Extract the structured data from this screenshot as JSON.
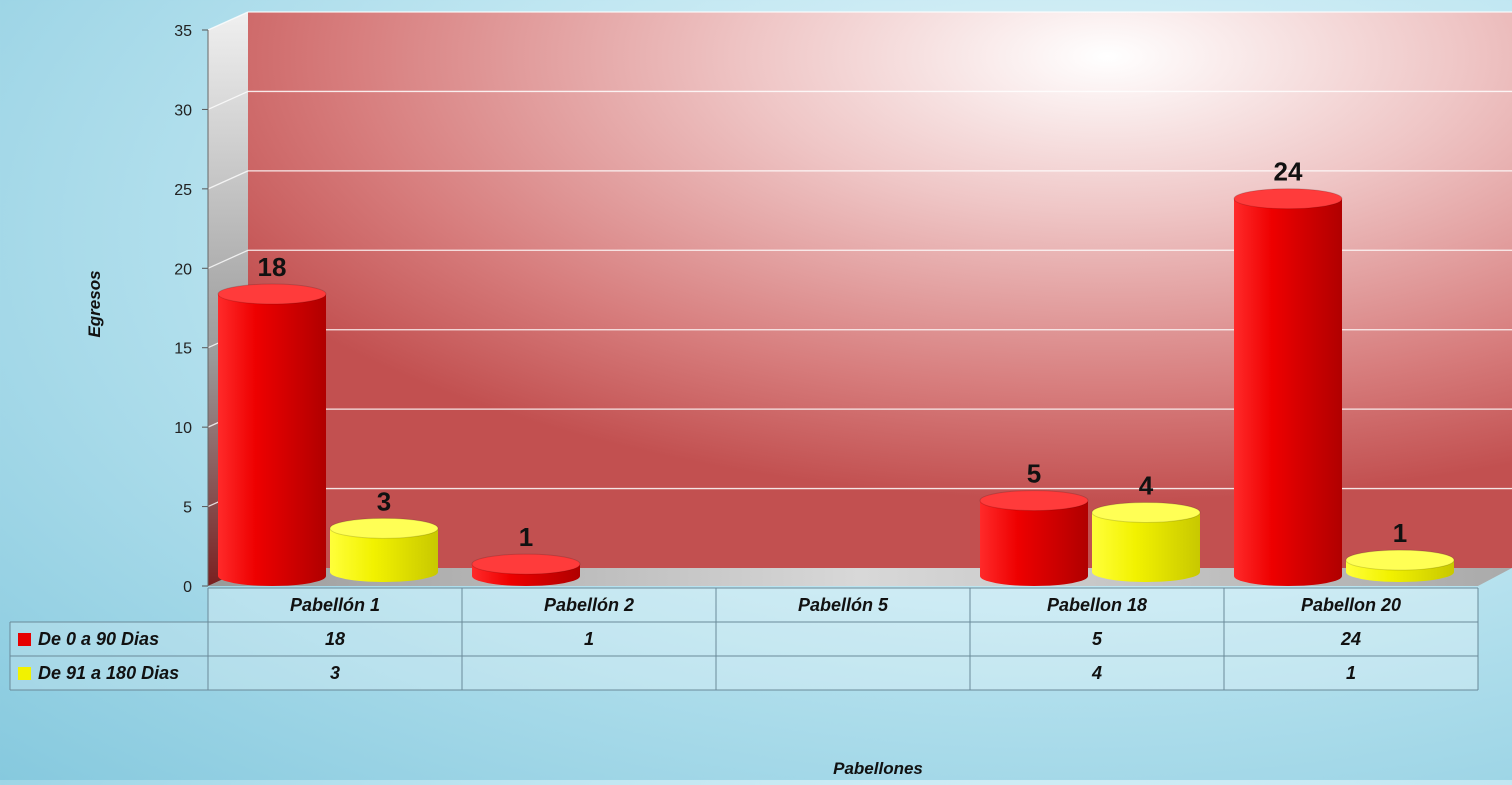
{
  "chart_data": {
    "type": "bar",
    "categories": [
      "Pabellón 1",
      "Pabellón 2",
      "Pabellón 5",
      "Pabellon 18",
      "Pabellon 20"
    ],
    "series": [
      {
        "name": "De 0 a 90 Dias",
        "color": "#e60000",
        "values": [
          18,
          1,
          null,
          5,
          24
        ]
      },
      {
        "name": "De 91 a 180 Dias",
        "color": "#f2f200",
        "values": [
          3,
          null,
          null,
          4,
          1
        ]
      }
    ],
    "xlabel": "Pabellones",
    "ylabel": "Egresos",
    "ylim": [
      0,
      35
    ],
    "yticks": [
      0,
      5,
      10,
      15,
      20,
      25,
      30,
      35
    ],
    "data_table": true,
    "grid": true
  }
}
